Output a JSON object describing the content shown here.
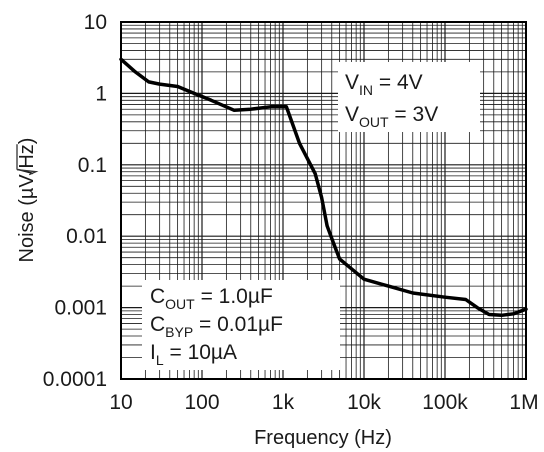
{
  "chart_data": {
    "type": "line",
    "xlabel": "Frequency (Hz)",
    "ylabel_prefix": "Noise (µV/",
    "ylabel_radical": "Hz",
    "ylabel_suffix": ")",
    "x_scale": "log",
    "y_scale": "log",
    "xlim": [
      10,
      1000000
    ],
    "ylim": [
      0.0001,
      10
    ],
    "grid": true,
    "x_ticks": [
      {
        "value": 10,
        "label": "10"
      },
      {
        "value": 100,
        "label": "100"
      },
      {
        "value": 1000,
        "label": "1k"
      },
      {
        "value": 10000,
        "label": "10k"
      },
      {
        "value": 100000,
        "label": "100k"
      },
      {
        "value": 1000000,
        "label": "1M"
      }
    ],
    "y_ticks": [
      {
        "value": 10,
        "label": "10"
      },
      {
        "value": 1,
        "label": "1"
      },
      {
        "value": 0.1,
        "label": "0.1"
      },
      {
        "value": 0.01,
        "label": "0.01"
      },
      {
        "value": 0.001,
        "label": "0.001"
      },
      {
        "value": 0.0001,
        "label": "0.0001"
      }
    ],
    "series": [
      {
        "x": [
          10,
          15,
          22,
          30,
          50,
          80,
          130,
          250,
          400,
          700,
          1100,
          1600,
          2500,
          3000,
          3500,
          4200,
          5000,
          7000,
          10000,
          20000,
          40000,
          100000,
          180000,
          250000,
          350000,
          500000,
          700000,
          1000000
        ],
        "y": [
          3.0,
          2.0,
          1.45,
          1.35,
          1.25,
          1.0,
          0.8,
          0.58,
          0.6,
          0.65,
          0.65,
          0.2,
          0.075,
          0.035,
          0.014,
          0.008,
          0.0048,
          0.0035,
          0.0025,
          0.002,
          0.0016,
          0.0014,
          0.0013,
          0.001,
          0.0008,
          0.00078,
          0.00082,
          0.00095
        ]
      }
    ],
    "annotations": {
      "vin": {
        "main": "V",
        "sub": "IN",
        "rest": " = 4V"
      },
      "vout": {
        "main": "V",
        "sub": "OUT",
        "rest": " = 3V"
      },
      "cout": {
        "main": "C",
        "sub": "OUT",
        "rest": " = 1.0µF"
      },
      "cbyp": {
        "main": "C",
        "sub": "BYP",
        "rest": " = 0.01µF"
      },
      "il": {
        "main": "I",
        "sub": "L",
        "rest": " = 10µA"
      }
    },
    "colors": {
      "line": "#000000",
      "grid": "#1a1a1a",
      "frame": "#000000"
    }
  }
}
